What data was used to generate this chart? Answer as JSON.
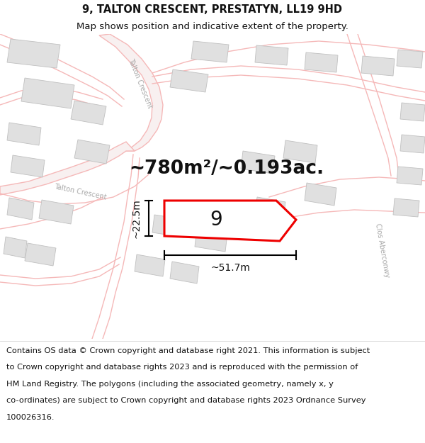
{
  "title_line1": "9, TALTON CRESCENT, PRESTATYN, LL19 9HD",
  "title_line2": "Map shows position and indicative extent of the property.",
  "area_text": "~780m²/~0.193ac.",
  "number_label": "9",
  "dim_width": "~51.7m",
  "dim_height": "~22.5m",
  "footer_lines": [
    "Contains OS data © Crown copyright and database right 2021. This information is subject",
    "to Crown copyright and database rights 2023 and is reproduced with the permission of",
    "HM Land Registry. The polygons (including the associated geometry, namely x, y",
    "co-ordinates) are subject to Crown copyright and database rights 2023 Ordnance Survey",
    "100026316."
  ],
  "road_color": "#f5b8b8",
  "road_fill": "#f9e8e8",
  "building_color": "#e0e0e0",
  "building_stroke": "#c0c0c0",
  "highlight_color": "#ee0000",
  "text_color": "#111111",
  "label_color": "#999999",
  "title_fontsize": 10.5,
  "subtitle_fontsize": 9.5,
  "area_fontsize": 19,
  "number_fontsize": 20,
  "dim_fontsize": 10,
  "footer_fontsize": 8.2,
  "road_lw": 1.0,
  "prop_lw": 2.2
}
